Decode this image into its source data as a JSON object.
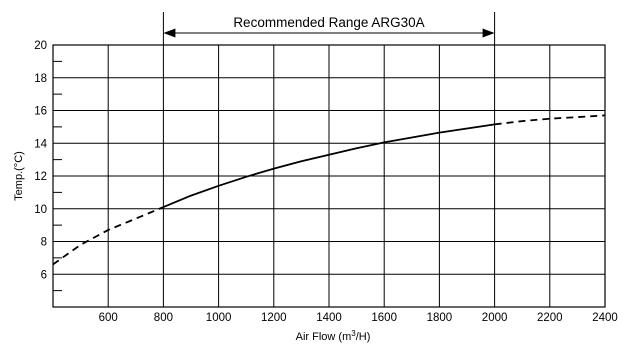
{
  "chart_data": {
    "type": "line",
    "title": "",
    "xlabel": "Air Flow (m³/H)",
    "xlabel_main": "Air Flow (m",
    "xlabel_sup": "3",
    "xlabel_tail": "/H)",
    "ylabel": "Temp.(°C)",
    "xlim": [
      400,
      2400
    ],
    "ylim": [
      4,
      20
    ],
    "x_ticks": [
      600,
      800,
      1000,
      1200,
      1400,
      1600,
      1800,
      2000,
      2200,
      2400
    ],
    "x_tick_labels": [
      "600",
      "800",
      "1000",
      "1200",
      "1400",
      "1600",
      "1800",
      "2000",
      "2200",
      "2400"
    ],
    "y_ticks": [
      6,
      8,
      10,
      12,
      14,
      16,
      18,
      20
    ],
    "y_tick_labels": [
      "6",
      "8",
      "10",
      "12",
      "14",
      "16",
      "18",
      "20"
    ],
    "grid": true,
    "annotation": {
      "text": "Recommended Range ARG30A",
      "x_range": [
        800,
        2000
      ]
    },
    "series": [
      {
        "x": [
          400,
          500,
          600,
          700,
          800,
          900,
          1000,
          1100,
          1200,
          1300,
          1400,
          1500,
          1600,
          1700,
          1800,
          1900,
          2000,
          2100,
          2200,
          2300,
          2400
        ],
        "y": [
          6.6,
          7.8,
          8.7,
          9.4,
          10.1,
          10.8,
          11.4,
          11.95,
          12.45,
          12.9,
          13.3,
          13.7,
          14.05,
          14.35,
          14.65,
          14.9,
          15.15,
          15.35,
          15.5,
          15.6,
          15.7
        ],
        "solid_range": [
          800,
          2000
        ]
      }
    ]
  }
}
